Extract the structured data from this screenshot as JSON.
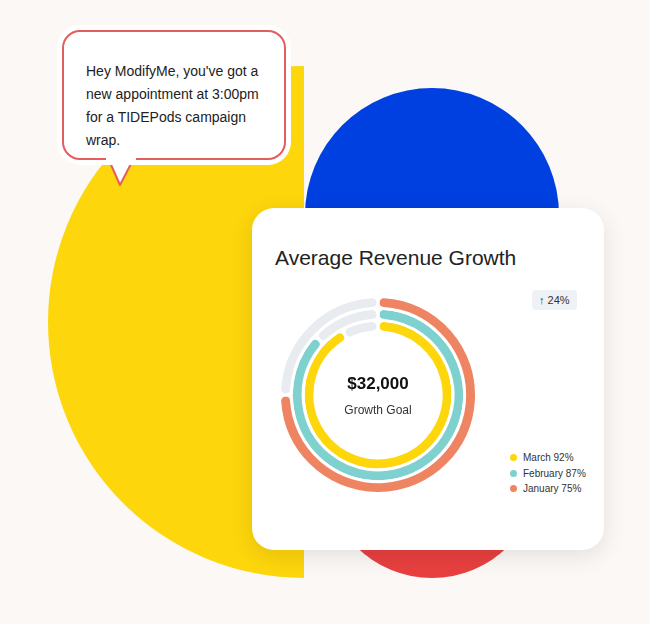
{
  "notification": {
    "text": "Hey ModifyMe, you've got a new appointment at 3:00pm for a TIDEPods campaign wrap."
  },
  "chart_data": {
    "type": "doughnut",
    "title": "Average Revenue Growth",
    "annotations": [
      "$32,000",
      "Growth Goal",
      "↑ 24%"
    ],
    "series": [
      {
        "name": "March",
        "color": "#fdd60c",
        "values": [
          92
        ],
        "value_labels": [
          "92%"
        ]
      },
      {
        "name": "February",
        "color": "#7fd1cf",
        "values": [
          87
        ],
        "value_labels": [
          "87%"
        ]
      },
      {
        "name": "January",
        "color": "#ef8462",
        "values": [
          75
        ],
        "value_labels": [
          "75%"
        ]
      }
    ],
    "ylim": [
      0,
      100
    ],
    "legend": "right",
    "tick_labels": false
  }
}
